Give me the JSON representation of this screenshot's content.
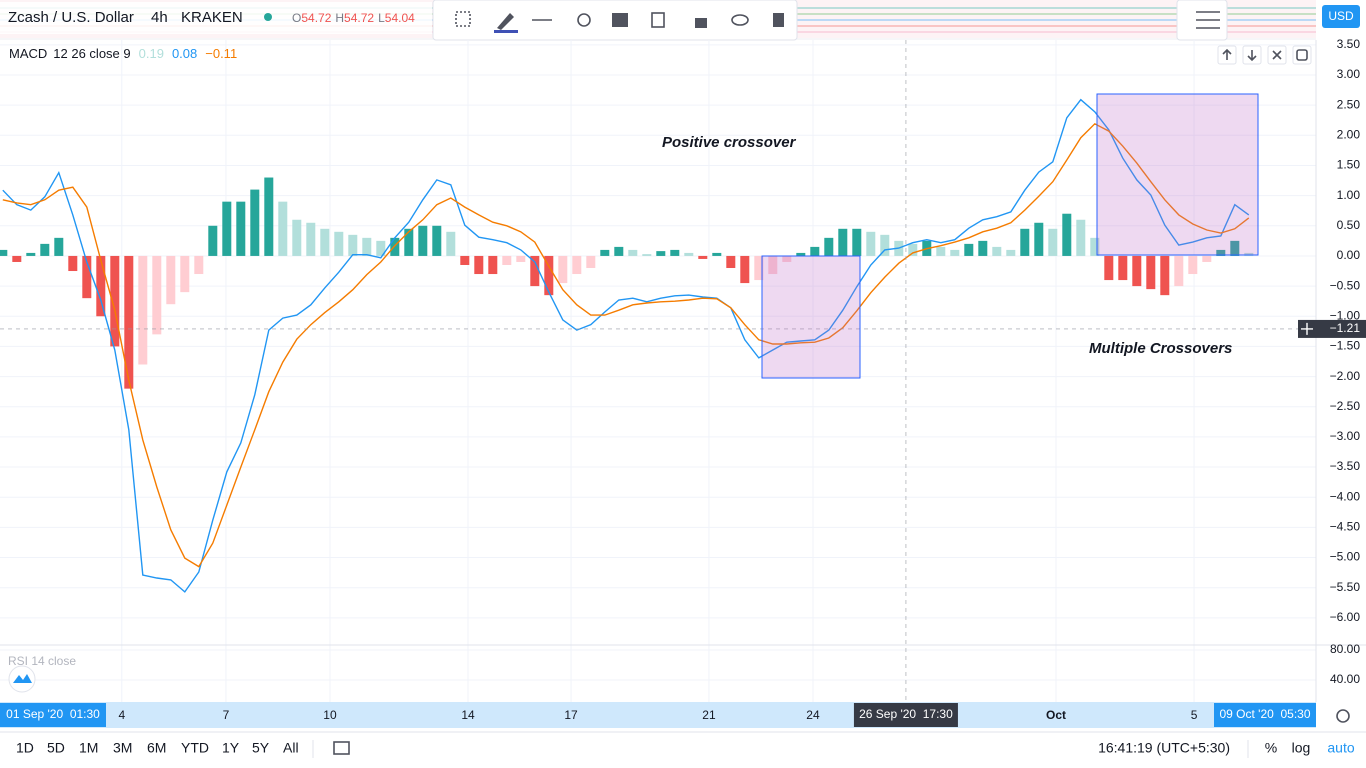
{
  "header": {
    "symbol": "Zcash / U.S. Dollar",
    "interval": "4h",
    "exchange": "KRAKEN",
    "ohlc": [
      {
        "key": "O",
        "value": 54.72
      },
      {
        "key": "H",
        "value": 54.72
      },
      {
        "key": "L",
        "value": 54.04
      }
    ],
    "currency": "USD"
  },
  "chart_data": {
    "type": "line",
    "legend": {
      "name": "MACD",
      "params": "12 26 close 9",
      "values": [
        0.19,
        0.08,
        {
          "value": -0.11,
          "label": "−0.11"
        }
      ]
    },
    "annotations": [
      "Positive crossover",
      "Multiple Crossovers"
    ],
    "xlim": [
      -0.2,
      93.8
    ],
    "xticks": [
      {
        "value": 8.5,
        "label": "4"
      },
      {
        "value": 15.94,
        "label": "7"
      },
      {
        "value": 23.37,
        "label": "10"
      },
      {
        "value": 33.23,
        "label": "14"
      },
      {
        "value": 40.59,
        "label": "17"
      },
      {
        "value": 50.44,
        "label": "21"
      },
      {
        "value": 57.87,
        "label": "24"
      },
      {
        "value": 75.23,
        "label": "Oct"
      },
      {
        "value": 85.09,
        "label": "5"
      }
    ],
    "range_start": "01 Sep '20  01:30",
    "range_end": "09 Oct '20  05:30",
    "crosshair": {
      "x": 64.51,
      "x_label": "26 Sep '20  17:30",
      "y": {
        "value": -1.21,
        "label": "−1.21"
      }
    },
    "ylim": [
      -6.45,
      3.58
    ],
    "yticks": [
      {
        "value": 3.5,
        "label": "3.50"
      },
      {
        "value": 3,
        "label": "3.00"
      },
      {
        "value": 2.5,
        "label": "2.50"
      },
      {
        "value": 2,
        "label": "2.00"
      },
      {
        "value": 1.5,
        "label": "1.50"
      },
      {
        "value": 1,
        "label": "1.00"
      },
      {
        "value": 0.5,
        "label": "0.50"
      },
      {
        "value": 0,
        "label": "0.00"
      },
      {
        "value": -0.5,
        "label": "−0.50"
      },
      {
        "value": -1,
        "label": "−1.00"
      },
      {
        "value": -1.5,
        "label": "−1.50"
      },
      {
        "value": -2,
        "label": "−2.00"
      },
      {
        "value": -2.5,
        "label": "−2.50"
      },
      {
        "value": -3,
        "label": "−3.00"
      },
      {
        "value": -3.5,
        "label": "−3.50"
      },
      {
        "value": -4,
        "label": "−4.00"
      },
      {
        "value": -4.5,
        "label": "−4.50"
      },
      {
        "value": -5,
        "label": "−5.00"
      },
      {
        "value": -5.5,
        "label": "−5.50"
      },
      {
        "value": -6,
        "label": "−6.00"
      }
    ],
    "grid": true,
    "series": [
      {
        "type": "bar",
        "colors": {
          "pos_up": "#26a69a",
          "pos_down": "#b2dfdb",
          "neg_down": "#ef5350",
          "neg_up": "#ffcdd2"
        },
        "values": [
          0.1,
          -0.1,
          0.05,
          0.2,
          0.3,
          -0.25,
          -0.7,
          -1.0,
          -1.5,
          -2.2,
          -1.8,
          -1.3,
          -0.8,
          -0.6,
          -0.3,
          0.5,
          0.9,
          0.9,
          1.1,
          1.3,
          0.9,
          0.6,
          0.55,
          0.45,
          0.4,
          0.35,
          0.3,
          0.25,
          0.3,
          0.45,
          0.5,
          0.5,
          0.4,
          -0.15,
          -0.3,
          -0.3,
          -0.15,
          -0.1,
          -0.5,
          -0.65,
          -0.45,
          -0.3,
          -0.2,
          0.1,
          0.15,
          0.1,
          0.03,
          0.08,
          0.1,
          0.05,
          -0.05,
          0.05,
          -0.2,
          -0.45,
          -0.4,
          -0.3,
          -0.1,
          0.05,
          0.15,
          0.3,
          0.45,
          0.45,
          0.4,
          0.35,
          0.25,
          0.2,
          0.25,
          0.15,
          0.1,
          0.2,
          0.25,
          0.15,
          0.1,
          0.45,
          0.55,
          0.45,
          0.7,
          0.6,
          0.3,
          -0.4,
          -0.4,
          -0.5,
          -0.55,
          -0.65,
          -0.5,
          -0.3,
          -0.1,
          0.1,
          0.25,
          0.05
        ]
      },
      {
        "type": "line",
        "color": "#2196f3",
        "values": [
          1.09,
          0.85,
          0.76,
          0.98,
          1.38,
          0.68,
          -0.1,
          -0.73,
          -1.56,
          -2.88,
          -5.29,
          -5.34,
          -5.37,
          -5.57,
          -5.24,
          -4.38,
          -3.58,
          -3.1,
          -2.3,
          -1.23,
          -1.03,
          -0.98,
          -0.81,
          -0.53,
          -0.27,
          0.02,
          0.02,
          -0.03,
          0.3,
          0.56,
          0.93,
          1.26,
          1.18,
          0.51,
          0.31,
          0.27,
          0.22,
          0.1,
          -0.1,
          -0.6,
          -1.06,
          -1.23,
          -1.14,
          -0.93,
          -0.73,
          -0.7,
          -0.76,
          -0.7,
          -0.66,
          -0.65,
          -0.68,
          -0.7,
          -0.86,
          -1.39,
          -1.69,
          -1.56,
          -1.43,
          -1.41,
          -1.39,
          -1.23,
          -0.9,
          -0.51,
          -0.15,
          0.1,
          0.13,
          0.22,
          0.27,
          0.22,
          0.27,
          0.46,
          0.6,
          0.65,
          0.73,
          1.09,
          1.39,
          1.56,
          2.29,
          2.59,
          2.39,
          2.09,
          1.62,
          1.26,
          1.01,
          0.51,
          0.18,
          0.23,
          0.3,
          0.33,
          0.85,
          0.68
        ]
      },
      {
        "type": "line",
        "color": "#f57c00",
        "values": [
          0.93,
          0.88,
          0.85,
          0.93,
          1.09,
          1.14,
          0.81,
          -0.07,
          -0.9,
          -2.06,
          -3.05,
          -3.83,
          -4.54,
          -5.01,
          -5.15,
          -4.76,
          -4.13,
          -3.5,
          -2.88,
          -2.25,
          -1.76,
          -1.38,
          -1.14,
          -0.94,
          -0.76,
          -0.56,
          -0.31,
          -0.1,
          0.17,
          0.4,
          0.6,
          0.85,
          0.96,
          0.81,
          0.68,
          0.56,
          0.5,
          0.4,
          0.23,
          -0.17,
          -0.56,
          -0.81,
          -0.98,
          -0.98,
          -0.9,
          -0.81,
          -0.78,
          -0.76,
          -0.75,
          -0.73,
          -0.7,
          -0.71,
          -0.86,
          -1.14,
          -1.39,
          -1.46,
          -1.46,
          -1.44,
          -1.43,
          -1.36,
          -1.19,
          -0.91,
          -0.61,
          -0.35,
          -0.12,
          0.05,
          0.12,
          0.17,
          0.23,
          0.3,
          0.4,
          0.46,
          0.55,
          0.76,
          0.99,
          1.23,
          1.59,
          1.96,
          2.19,
          2.07,
          1.82,
          1.54,
          1.23,
          0.93,
          0.68,
          0.53,
          0.43,
          0.38,
          0.45,
          0.63
        ]
      }
    ]
  },
  "rsi_pane": {
    "label": "RSI 14 close",
    "ylim": [
      13.3,
      86.7
    ],
    "yticks": [
      {
        "value": 80,
        "label": "80.00"
      },
      {
        "value": 40,
        "label": "40.00"
      }
    ]
  },
  "footer": {
    "ranges": [
      "1D",
      "5D",
      "1M",
      "3M",
      "6M",
      "YTD",
      "1Y",
      "5Y",
      "All"
    ],
    "clock": "16:41:19 (UTC+5:30)",
    "percent": "%",
    "log": "log",
    "auto": "auto"
  }
}
